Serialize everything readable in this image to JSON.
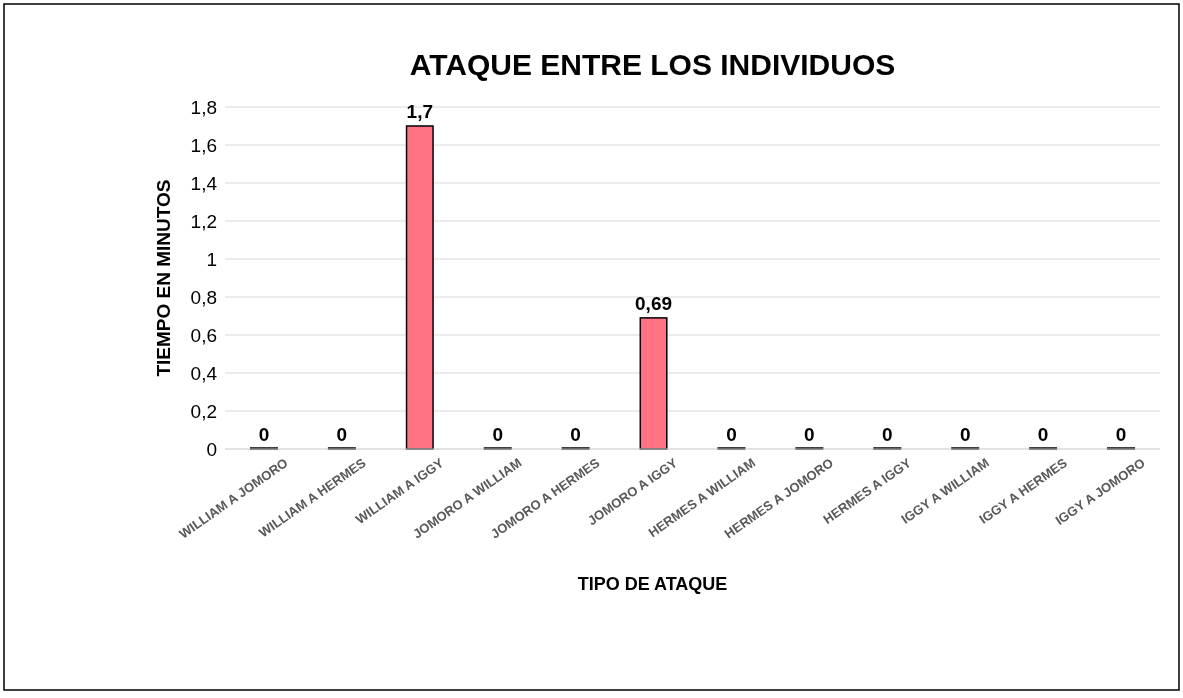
{
  "chart_data": {
    "type": "bar",
    "title": "ATAQUE ENTRE LOS INDIVIDUOS",
    "xlabel": "TIPO DE ATAQUE",
    "ylabel": "TIEMPO EN MINUTOS",
    "categories": [
      "WILLIAM A JOMORO",
      "WILLIAM A HERMES",
      "WILLIAM A IGGY",
      "JOMORO A WILLIAM",
      "JOMORO A HERMES",
      "JOMORO A IGGY",
      "HERMES A WILLIAM",
      "HERMES A JOMORO",
      "HERMES A IGGY",
      "IGGY A WILLIAM",
      "IGGY A HERMES",
      "IGGY A JOMORO"
    ],
    "values": [
      0,
      0,
      1.7,
      0,
      0,
      0.69,
      0,
      0,
      0,
      0,
      0,
      0
    ],
    "value_labels": [
      "0",
      "0",
      "1,7",
      "0",
      "0",
      "0,69",
      "0",
      "0",
      "0",
      "0",
      "0",
      "0"
    ],
    "color": "#ff7384",
    "ylim": [
      0,
      1.8
    ],
    "yticks": [
      0,
      {
        "value": 0.2,
        "label": "0,2"
      },
      {
        "value": 0.4,
        "label": "0,4"
      },
      {
        "value": 0.6,
        "label": "0,6"
      },
      {
        "value": 0.8,
        "label": "0,8"
      },
      1,
      {
        "value": 1.2,
        "label": "1,2"
      },
      {
        "value": 1.4,
        "label": "1,4"
      },
      {
        "value": 1.6,
        "label": "1,6"
      },
      {
        "value": 1.8,
        "label": "1,8"
      }
    ],
    "grid": "y"
  }
}
